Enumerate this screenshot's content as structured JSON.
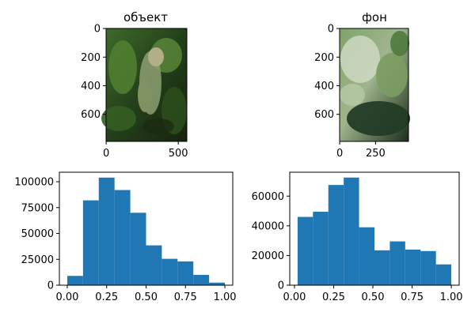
{
  "chart_data": [
    {
      "type": "image",
      "title": "объект",
      "image_size": [
        560,
        790
      ],
      "xticks": [
        0,
        500
      ],
      "yticks": [
        0,
        200,
        400,
        600
      ],
      "description_colors": [
        "#2f5a1f",
        "#6a8a3a",
        "#1a2e12",
        "#a9b58f"
      ]
    },
    {
      "type": "image",
      "title": "фон",
      "image_size": [
        480,
        790
      ],
      "xticks": [
        0,
        250
      ],
      "yticks": [
        0,
        200,
        400,
        600
      ],
      "description_colors": [
        "#3b5f2a",
        "#c6d2b8",
        "#1b2b1c",
        "#6f8f57"
      ]
    },
    {
      "type": "bar",
      "title": "",
      "bin_edges": [
        0.0,
        0.1,
        0.2,
        0.3,
        0.4,
        0.5,
        0.6,
        0.7,
        0.8,
        0.9,
        1.0
      ],
      "values": [
        9000,
        82000,
        104000,
        92000,
        70000,
        38500,
        25500,
        23000,
        10000,
        2500
      ],
      "xlim": [
        -0.05,
        1.05
      ],
      "ylim": [
        0,
        109200
      ],
      "xticks": [
        0.0,
        0.25,
        0.5,
        0.75,
        1.0
      ],
      "xtick_labels": [
        "0.00",
        "0.25",
        "0.50",
        "0.75",
        "1.00"
      ],
      "yticks": [
        0,
        25000,
        50000,
        75000,
        100000
      ],
      "ytick_labels": [
        "0",
        "25000",
        "50000",
        "75000",
        "100000"
      ],
      "color": "#1f77b4"
    },
    {
      "type": "bar",
      "title": "",
      "bin_edges": [
        0.02,
        0.118,
        0.216,
        0.314,
        0.412,
        0.51,
        0.608,
        0.706,
        0.804,
        0.902,
        1.0
      ],
      "values": [
        46000,
        49500,
        67500,
        72500,
        39000,
        23500,
        29500,
        24000,
        23000,
        14000
      ],
      "xlim": [
        -0.03,
        1.05
      ],
      "ylim": [
        0,
        76100
      ],
      "xticks": [
        0.0,
        0.25,
        0.5,
        0.75,
        1.0
      ],
      "xtick_labels": [
        "0.00",
        "0.25",
        "0.50",
        "0.75",
        "1.00"
      ],
      "yticks": [
        0,
        20000,
        40000,
        60000
      ],
      "ytick_labels": [
        "0",
        "20000",
        "40000",
        "60000"
      ],
      "color": "#1f77b4"
    }
  ]
}
